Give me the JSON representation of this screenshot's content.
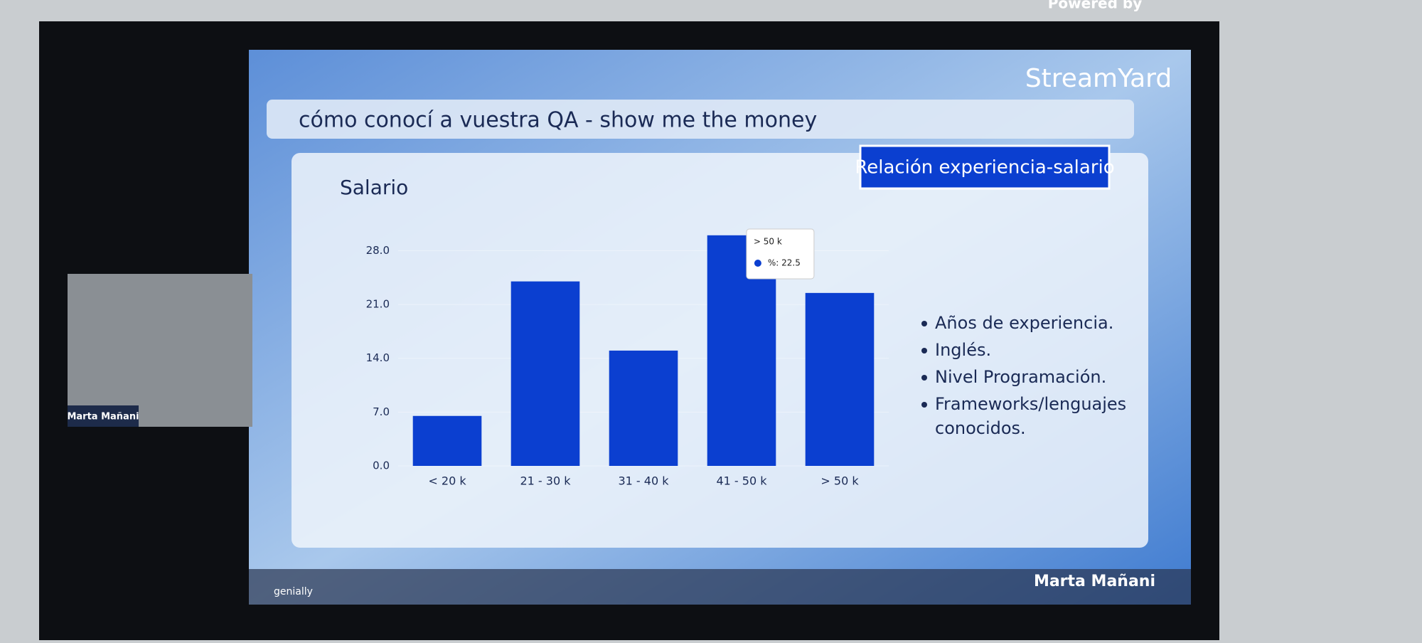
{
  "header": {
    "powered": "Powered by",
    "brand": "StreamYard"
  },
  "webcam": {
    "name": "Marta Mañani"
  },
  "slide": {
    "title": "cómo conocí a vuestra QA - show me the money",
    "badge": "Relación experiencia-salario",
    "bullets": [
      "Años de experiencia.",
      "Inglés.",
      "Nivel Programación.",
      "Frameworks/lenguajes conocidos."
    ],
    "footer_logo": "genially",
    "presenter": "Marta Mañani"
  },
  "chart_data": {
    "type": "bar",
    "title": "Salario",
    "categories": [
      "< 20 k",
      "21 - 30 k",
      "31 - 40 k",
      "41 - 50 k",
      "> 50 k"
    ],
    "values": [
      6.5,
      24,
      15,
      30,
      22.5
    ],
    "color": "#0b3fd0",
    "ylim": [
      0,
      31
    ],
    "yticks": [
      {
        "value": 0,
        "label": "0.0"
      },
      {
        "value": 7,
        "label": "7.0"
      },
      {
        "value": 14,
        "label": "14.0"
      },
      {
        "value": 21,
        "label": "21.0"
      },
      {
        "value": 28,
        "label": "28.0"
      }
    ],
    "tooltip": {
      "title": "> 50 k",
      "text": "%: 22.5"
    }
  }
}
